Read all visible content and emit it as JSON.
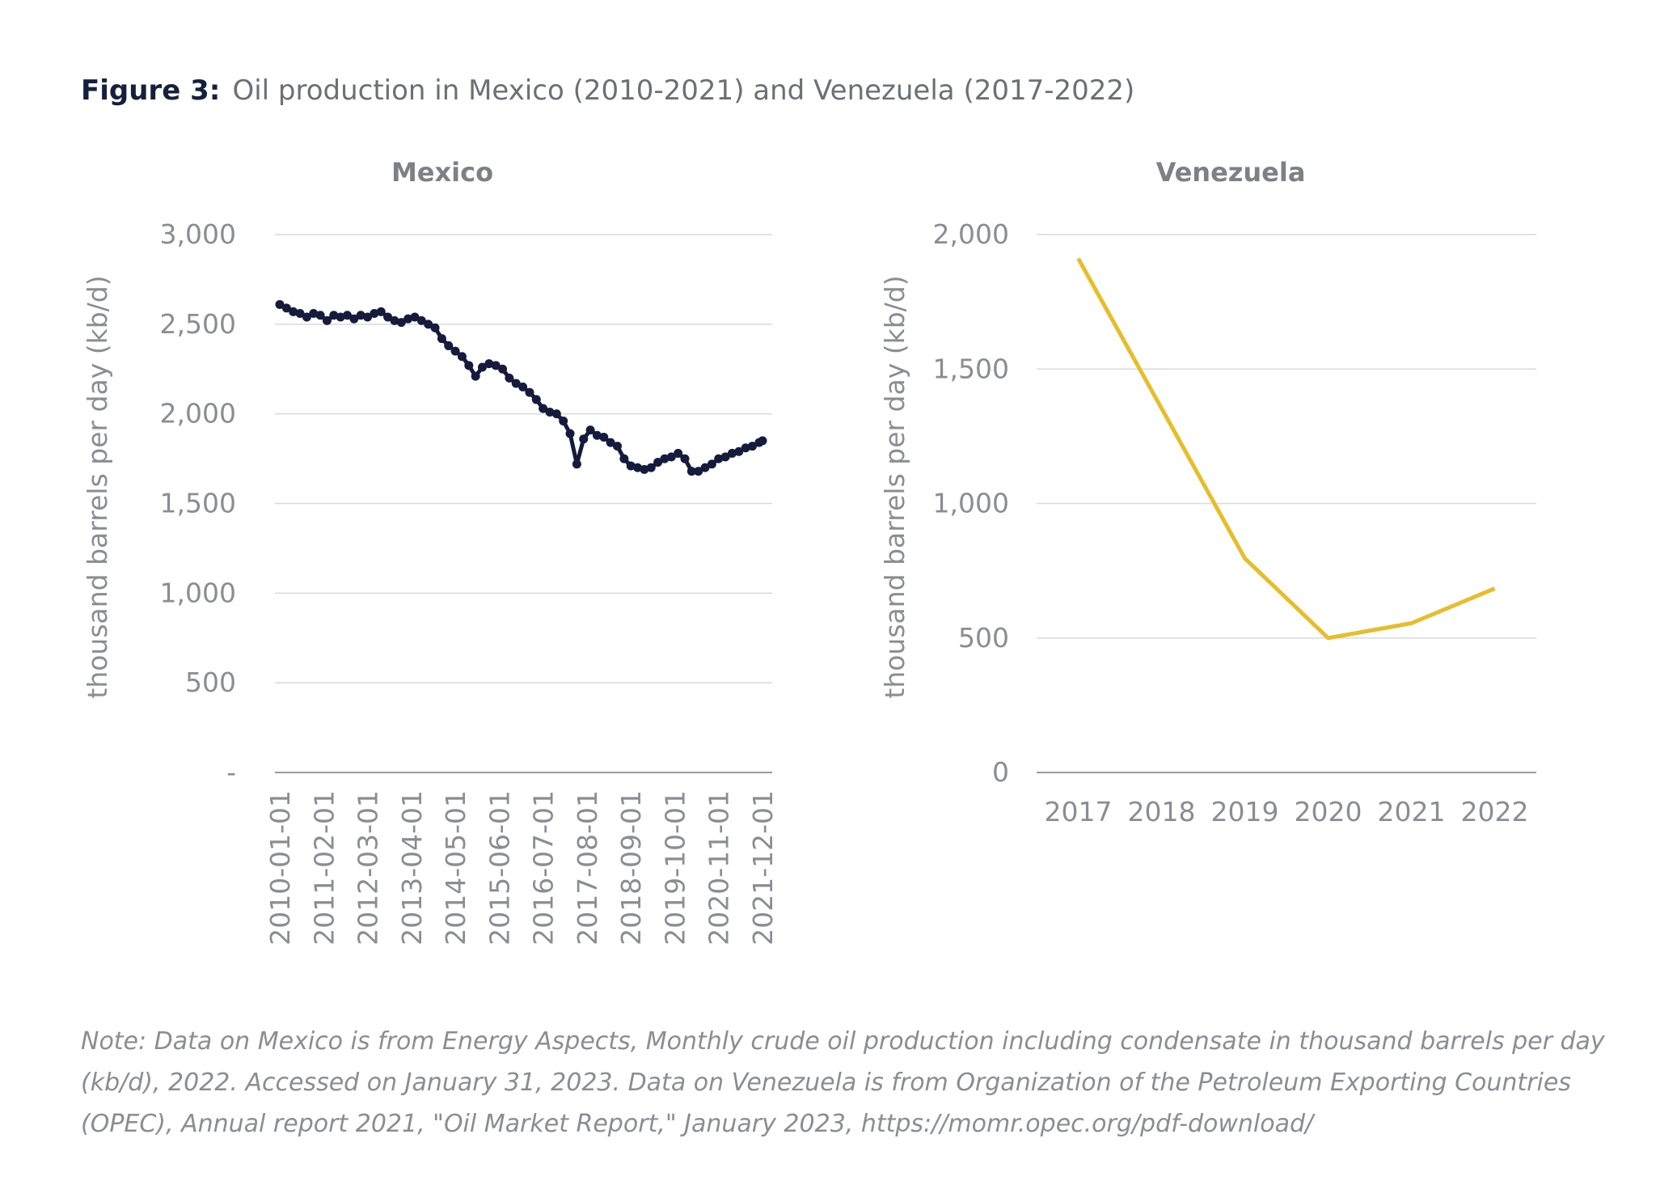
{
  "figure": {
    "label": "Figure 3:",
    "title": "Oil production in Mexico (2010-2021) and Venezuela (2017-2022)",
    "note": "Note: Data on Mexico is from Energy Aspects, Monthly crude oil production including condensate in thousand barrels per day (kb/d), 2022. Accessed on January 31, 2023. Data on Venezuela is from Organization of the Petroleum Exporting Countries (OPEC), Annual report 2021, \"Oil Market Report,\" January 2023, https://momr.opec.org/pdf-download/"
  },
  "chart_data": [
    {
      "type": "line",
      "title": "Mexico",
      "ylabel": "thousand barrels per day (kb/d)",
      "xlabel": "",
      "ylim": [
        0,
        3000
      ],
      "y_ticks": [
        "-",
        "500",
        "1,000",
        "1,500",
        "2,000",
        "2,500",
        "3,000"
      ],
      "x_ticks": [
        "2010-01-01",
        "2011-02-01",
        "2012-03-01",
        "2013-04-01",
        "2014-05-01",
        "2015-06-01",
        "2016-07-01",
        "2017-08-01",
        "2018-09-01",
        "2019-10-01",
        "2020-11-01",
        "2021-12-01"
      ],
      "grid": true,
      "marker": "circle",
      "color": "#141b3c",
      "x": [
        "2010-01",
        "2010-03",
        "2010-05",
        "2010-07",
        "2010-09",
        "2010-11",
        "2011-01",
        "2011-03",
        "2011-05",
        "2011-07",
        "2011-09",
        "2011-11",
        "2012-01",
        "2012-03",
        "2012-05",
        "2012-07",
        "2012-09",
        "2012-11",
        "2013-01",
        "2013-03",
        "2013-05",
        "2013-07",
        "2013-09",
        "2013-11",
        "2014-01",
        "2014-03",
        "2014-05",
        "2014-07",
        "2014-09",
        "2014-11",
        "2015-01",
        "2015-03",
        "2015-05",
        "2015-07",
        "2015-09",
        "2015-11",
        "2016-01",
        "2016-03",
        "2016-05",
        "2016-07",
        "2016-09",
        "2016-11",
        "2017-01",
        "2017-03",
        "2017-05",
        "2017-07",
        "2017-09",
        "2017-11",
        "2018-01",
        "2018-03",
        "2018-05",
        "2018-07",
        "2018-09",
        "2018-11",
        "2019-01",
        "2019-03",
        "2019-05",
        "2019-07",
        "2019-09",
        "2019-11",
        "2020-01",
        "2020-03",
        "2020-05",
        "2020-07",
        "2020-09",
        "2020-11",
        "2021-01",
        "2021-03",
        "2021-05",
        "2021-07",
        "2021-09",
        "2021-11",
        "2021-12"
      ],
      "values": [
        2610,
        2590,
        2570,
        2560,
        2540,
        2560,
        2550,
        2520,
        2550,
        2540,
        2550,
        2530,
        2550,
        2540,
        2560,
        2570,
        2540,
        2520,
        2510,
        2530,
        2540,
        2520,
        2500,
        2480,
        2420,
        2380,
        2350,
        2320,
        2270,
        2210,
        2260,
        2280,
        2270,
        2250,
        2200,
        2170,
        2150,
        2120,
        2080,
        2030,
        2010,
        2000,
        1960,
        1890,
        1720,
        1860,
        1910,
        1880,
        1870,
        1840,
        1820,
        1750,
        1710,
        1700,
        1690,
        1700,
        1730,
        1750,
        1760,
        1780,
        1750,
        1680,
        1680,
        1700,
        1720,
        1750,
        1760,
        1780,
        1790,
        1810,
        1820,
        1840,
        1850
      ],
      "source_note": ""
    },
    {
      "type": "line",
      "title": "Venezuela",
      "ylabel": "thousand barrels per day (kb/d)",
      "xlabel": "",
      "ylim": [
        0,
        2000
      ],
      "y_ticks": [
        "0",
        "500",
        "1,000",
        "1,500",
        "2,000"
      ],
      "categories": [
        "2017",
        "2018",
        "2019",
        "2020",
        "2021",
        "2022"
      ],
      "values": [
        1911,
        1354,
        796,
        500,
        555,
        684
      ],
      "grid": true,
      "color": "#e6bd2a"
    }
  ]
}
